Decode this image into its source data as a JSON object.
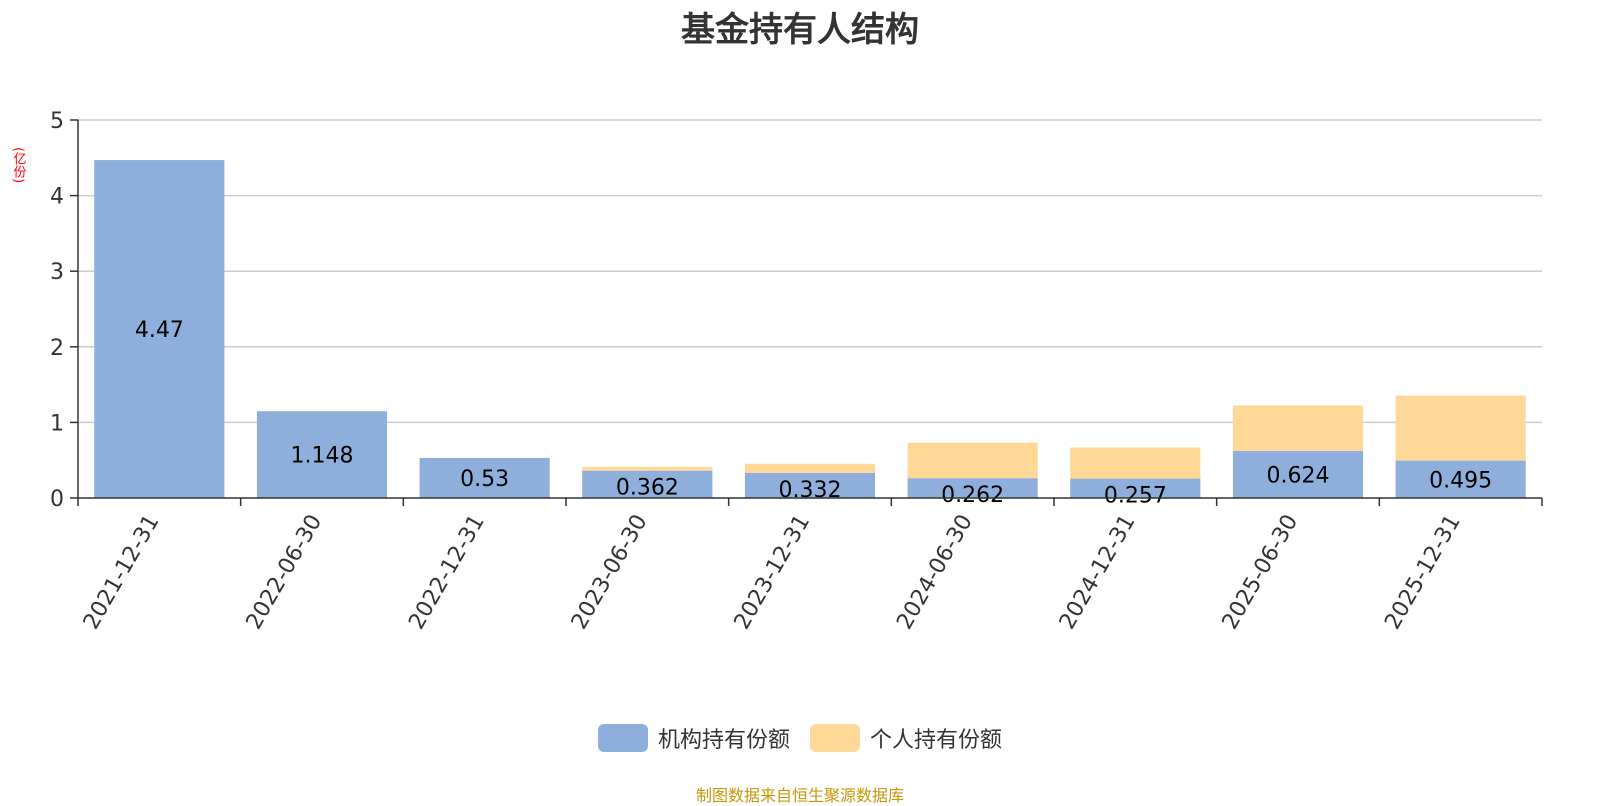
{
  "title": "基金持有人结构",
  "y_unit": "(亿份)",
  "source": "制图数据来自恒生聚源数据库",
  "colors": {
    "institution": "#8eaedb",
    "individual": "#ffd898",
    "grid": "#cccccc",
    "axis": "#333333",
    "label": "#000000"
  },
  "legend": [
    {
      "label": "机构持有份额",
      "color": "#8eaedb"
    },
    {
      "label": "个人持有份额",
      "color": "#ffd898"
    }
  ],
  "chart_data": {
    "type": "bar",
    "stacked": true,
    "title": "基金持有人结构",
    "ylabel": "(亿份)",
    "ylim": [
      0,
      5
    ],
    "yticks": [
      0,
      1,
      2,
      3,
      4,
      5
    ],
    "grid": true,
    "legend_position": "bottom",
    "categories": [
      "2021-12-31",
      "2022-06-30",
      "2022-12-31",
      "2023-06-30",
      "2023-12-31",
      "2024-06-30",
      "2024-12-31",
      "2025-06-30",
      "2025-12-31"
    ],
    "series": [
      {
        "name": "机构持有份额",
        "values": [
          4.47,
          1.148,
          0.53,
          0.362,
          0.332,
          0.262,
          0.257,
          0.624,
          0.495
        ],
        "labels": [
          "4.47",
          "1.148",
          "0.53",
          "0.362",
          "0.332",
          "0.262",
          "0.257",
          "0.624",
          "0.495"
        ]
      },
      {
        "name": "个人持有份额",
        "values": [
          0,
          0,
          0,
          0.05,
          0.12,
          0.47,
          0.41,
          0.6,
          0.86
        ]
      }
    ]
  }
}
